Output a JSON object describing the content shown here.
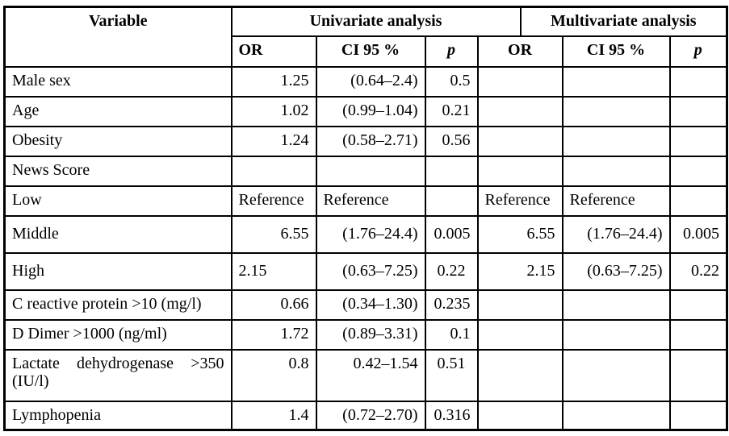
{
  "table": {
    "title_row": {
      "variable": "Variable",
      "univariate": "Univariate analysis",
      "multivariate": "Multivariate analysis"
    },
    "subheader": {
      "u_or": "OR",
      "u_ci": "CI 95 %",
      "u_p": "p",
      "m_or": "OR",
      "m_ci": "CI 95 %",
      "m_p": "p"
    },
    "rows": [
      {
        "variable": "Male sex",
        "indent": false,
        "cells": [
          {
            "t": "1.25",
            "a": "r"
          },
          {
            "t": "(0.64–2.4)",
            "a": "r"
          },
          {
            "t": "0.5",
            "a": "r"
          },
          {
            "t": "",
            "a": "r"
          },
          {
            "t": "",
            "a": "r"
          },
          {
            "t": "",
            "a": "r"
          }
        ]
      },
      {
        "variable": "Age",
        "indent": false,
        "cells": [
          {
            "t": "1.02",
            "a": "r"
          },
          {
            "t": "(0.99–1.04)",
            "a": "r"
          },
          {
            "t": "0.21",
            "a": "r"
          },
          {
            "t": "",
            "a": "r"
          },
          {
            "t": "",
            "a": "r"
          },
          {
            "t": "",
            "a": "r"
          }
        ]
      },
      {
        "variable": "Obesity",
        "indent": false,
        "cells": [
          {
            "t": "1.24",
            "a": "r"
          },
          {
            "t": "(0.58–2.71)",
            "a": "r"
          },
          {
            "t": "0.56",
            "a": "r"
          },
          {
            "t": "",
            "a": "r"
          },
          {
            "t": "",
            "a": "r"
          },
          {
            "t": "",
            "a": "r"
          }
        ]
      },
      {
        "variable": "News Score",
        "indent": false,
        "cells": [
          {
            "t": "",
            "a": "r"
          },
          {
            "t": "",
            "a": "r"
          },
          {
            "t": "",
            "a": "r"
          },
          {
            "t": "",
            "a": "r"
          },
          {
            "t": "",
            "a": "r"
          },
          {
            "t": "",
            "a": "r"
          }
        ]
      },
      {
        "variable": "Low",
        "indent": true,
        "cells": [
          {
            "t": "Reference",
            "a": "l"
          },
          {
            "t": "Reference",
            "a": "l"
          },
          {
            "t": "",
            "a": "r"
          },
          {
            "t": "Reference",
            "a": "l"
          },
          {
            "t": "Reference",
            "a": "l"
          },
          {
            "t": "",
            "a": "r"
          }
        ]
      },
      {
        "variable": "Middle",
        "indent": true,
        "cells": [
          {
            "t": "6.55",
            "a": "r"
          },
          {
            "t": "(1.76–24.4)",
            "a": "r"
          },
          {
            "t": "0.005",
            "a": "r"
          },
          {
            "t": "6.55",
            "a": "r"
          },
          {
            "t": "(1.76–24.4)",
            "a": "r"
          },
          {
            "t": "0.005",
            "a": "r"
          }
        ]
      },
      {
        "variable": "High",
        "indent": true,
        "cells": [
          {
            "t": "2.15",
            "a": "l"
          },
          {
            "t": "(0.63–7.25)",
            "a": "r"
          },
          {
            "t": "0.22",
            "a": "c"
          },
          {
            "t": "2.15",
            "a": "r"
          },
          {
            "t": "(0.63–7.25)",
            "a": "r"
          },
          {
            "t": "0.22",
            "a": "r"
          }
        ]
      },
      {
        "variable": "C reactive protein >10 (mg/l)",
        "indent": false,
        "cells": [
          {
            "t": "0.66",
            "a": "r"
          },
          {
            "t": "(0.34–1.30)",
            "a": "r"
          },
          {
            "t": "0.235",
            "a": "r"
          },
          {
            "t": "",
            "a": "r"
          },
          {
            "t": "",
            "a": "r"
          },
          {
            "t": "",
            "a": "r"
          }
        ]
      },
      {
        "variable": "D Dimer >1000 (ng/ml)",
        "indent": false,
        "cells": [
          {
            "t": "1.72",
            "a": "r"
          },
          {
            "t": "(0.89–3.31)",
            "a": "r"
          },
          {
            "t": "0.1",
            "a": "r"
          },
          {
            "t": "",
            "a": "r"
          },
          {
            "t": "",
            "a": "r"
          },
          {
            "t": "",
            "a": "r"
          }
        ]
      },
      {
        "variable": "Lactate dehydrogenase >350 (IU/l)",
        "indent": false,
        "cells": [
          {
            "t": "0.8",
            "a": "r"
          },
          {
            "t": "0.42–1.54",
            "a": "r"
          },
          {
            "t": "0.51",
            "a": "c"
          },
          {
            "t": "",
            "a": "r"
          },
          {
            "t": "",
            "a": "r"
          },
          {
            "t": "",
            "a": "r"
          }
        ]
      },
      {
        "variable": "Lymphopenia",
        "indent": false,
        "cells": [
          {
            "t": "1.4",
            "a": "r"
          },
          {
            "t": "(0.72–2.70)",
            "a": "r"
          },
          {
            "t": "0.316",
            "a": "r"
          },
          {
            "t": "",
            "a": "r"
          },
          {
            "t": "",
            "a": "r"
          },
          {
            "t": "",
            "a": "r"
          }
        ]
      }
    ]
  }
}
